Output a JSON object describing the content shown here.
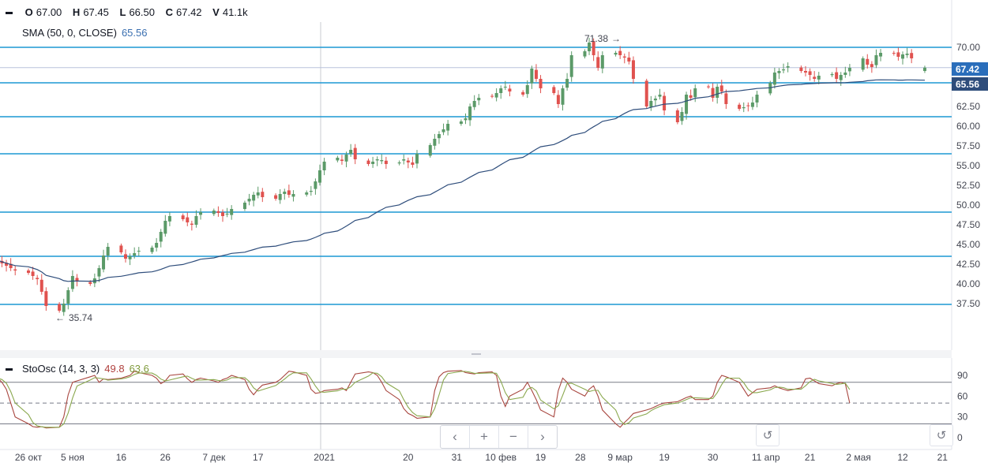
{
  "legend": {
    "ohlc": {
      "o_label": "O",
      "o": "67.00",
      "h_label": "H",
      "h": "67.45",
      "l_label": "L",
      "l": "66.50",
      "c_label": "C",
      "c": "67.42",
      "v_label": "V",
      "v": "41.1k"
    },
    "sma": {
      "label": "SMA (50, 0, CLOSE)",
      "value": "65.56"
    },
    "osc": {
      "label": "StoOsc (14, 3, 3)",
      "k_value": "49.8",
      "d_value": "63.6"
    }
  },
  "nav": {
    "left": "‹",
    "zoom_in": "+",
    "zoom_out": "−",
    "right": "›",
    "reset": "↺"
  },
  "colors": {
    "up": "#5b9a68",
    "down": "#e0524f",
    "sma": "#2e4d7b",
    "hline": "#1b98d4",
    "price_badge": "#2a6ebb",
    "sma_badge": "#2e4d7b",
    "osc_k": "#a8463f",
    "osc_d": "#8aa84e"
  },
  "chart_data": [
    {
      "type": "candlestick",
      "x_range": [
        "2020-10-19",
        "2021-05-21"
      ],
      "ylim": [
        32.5,
        75
      ],
      "y_ticks": [
        "70.00",
        "62.50",
        "60.00",
        "57.50",
        "55.00",
        "52.50",
        "50.00",
        "47.50",
        "45.00",
        "42.50",
        "40.00",
        "37.50"
      ],
      "x_ticks": [
        "26 окт",
        "5 ноя",
        "16",
        "26",
        "7 дек",
        "17",
        "2021",
        "20",
        "31",
        "10 фев",
        "19",
        "28",
        "9 мар",
        "19",
        "30",
        "11 апр",
        "21",
        "2 мая",
        "12",
        "21"
      ],
      "last_price": "67.42",
      "sma_value": "65.56",
      "annotations": [
        {
          "label": "71.38",
          "date": "2021-03-08",
          "value": 71.38
        },
        {
          "label": "35.74",
          "date": "2020-11-02",
          "value": 35.74
        }
      ],
      "horizontal_lines": [
        70.0,
        65.5,
        61.2,
        56.5,
        49.1,
        43.5,
        37.4
      ],
      "closes": [
        43.0,
        42.6,
        42.3,
        42.0,
        41.7,
        41.4,
        41.0,
        40.6,
        39.0,
        37.2,
        36.6,
        37.5,
        39.2,
        41.0,
        40.3,
        40.0,
        40.7,
        42.0,
        43.6,
        44.7,
        44.0,
        43.2,
        43.5,
        43.9,
        44.2,
        44.6,
        45.2,
        46.6,
        48.0,
        48.6,
        48.2,
        47.8,
        47.5,
        48.6,
        49.1,
        49.3,
        49.0,
        48.6,
        48.9,
        49.5,
        50.3,
        50.8,
        51.3,
        51.6,
        51.0,
        50.8,
        51.4,
        51.7,
        51.3,
        51.4,
        51.6,
        51.8,
        53.0,
        54.4,
        55.5,
        56.0,
        55.6,
        56.4,
        57.0,
        55.8,
        55.2,
        55.5,
        55.8,
        55.7,
        55.2,
        55.4,
        55.8,
        55.4,
        55.1,
        56.5,
        57.6,
        58.4,
        59.0,
        59.6,
        60.3,
        60.6,
        61.0,
        62.5,
        63.2,
        63.6,
        63.8,
        64.2,
        64.8,
        65.0,
        64.4,
        64.0,
        65.2,
        67.3,
        66.0,
        64.8,
        64.2,
        62.8,
        64.8,
        66.0,
        69.0,
        69.5,
        70.6,
        69.0,
        67.4,
        69.0,
        69.3,
        69.0,
        68.7,
        68.2,
        66.0,
        62.5,
        63.2,
        63.5,
        64.0,
        62.0,
        60.5,
        61.8,
        64.0,
        63.6,
        64.8,
        65.0,
        63.6,
        65.0,
        64.4,
        62.8,
        62.2,
        62.4,
        62.6,
        63.0,
        64.0,
        65.5,
        66.8,
        67.0,
        67.2,
        67.6,
        67.0,
        66.8,
        66.5,
        66.0,
        66.4,
        66.6,
        66.0,
        66.5,
        66.8,
        67.4,
        68.6,
        67.8,
        67.5,
        69.0,
        69.3,
        69.2,
        68.8,
        69.1,
        69.2,
        68.6,
        67.42
      ],
      "stoch_k": [
        86,
        80,
        70,
        50,
        30,
        20,
        16,
        15,
        16,
        14,
        15,
        30,
        62,
        80,
        82,
        88,
        90,
        80,
        85,
        84,
        86,
        88,
        90,
        96,
        94,
        90,
        86,
        78,
        82,
        90,
        92,
        85,
        80,
        84,
        86,
        82,
        80,
        84,
        86,
        90,
        84,
        70,
        62,
        70,
        76,
        80,
        84,
        90,
        96,
        95,
        90,
        70,
        64,
        65,
        68,
        70,
        72,
        68,
        80,
        92,
        95,
        94,
        90,
        80,
        68,
        55,
        42,
        35,
        32,
        28,
        30,
        68,
        88,
        94,
        96,
        97,
        94,
        93,
        92,
        94,
        95,
        90,
        60,
        45,
        60,
        70,
        80,
        68,
        55,
        40,
        30,
        68,
        86,
        80,
        70,
        60,
        70,
        75,
        60,
        40,
        20,
        15,
        22,
        28,
        35,
        40,
        42,
        45,
        48,
        50,
        52,
        55,
        58,
        60,
        55,
        55,
        60,
        80,
        90,
        88,
        80,
        70,
        60,
        65,
        70,
        72,
        75,
        72,
        70,
        68,
        72,
        85,
        86,
        82,
        78,
        75,
        78,
        80,
        78,
        50
      ]
    }
  ]
}
